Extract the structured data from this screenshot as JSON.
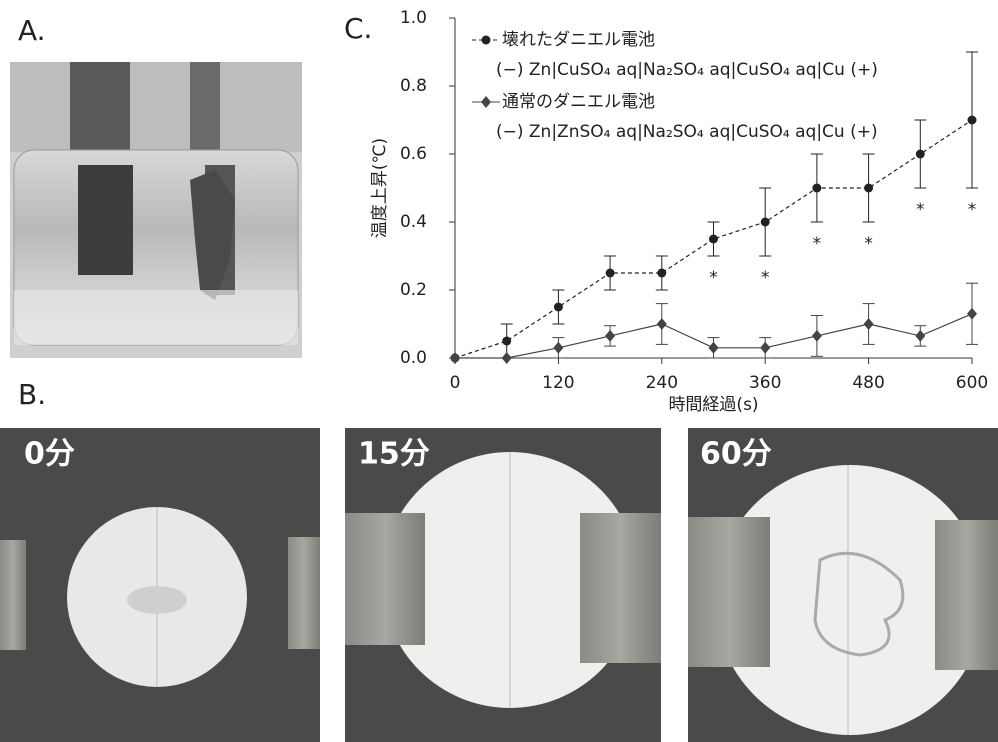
{
  "panel_labels": [
    "A.",
    "B.",
    "C."
  ],
  "photo_labels": [
    "0分",
    "15分",
    "60分"
  ],
  "chart_data": {
    "type": "line",
    "y_label": "温度上昇(℃)",
    "x_label": "時間経過(s)",
    "x": [
      0,
      60,
      120,
      180,
      240,
      300,
      360,
      420,
      480,
      540,
      600
    ],
    "xlim": [
      0,
      600
    ],
    "xticks": [
      0,
      120,
      240,
      360,
      480,
      600
    ],
    "ylim": [
      0,
      1
    ],
    "yticks": [
      {
        "value": 0,
        "label": "0.0"
      },
      {
        "value": 0.2,
        "label": "0.2"
      },
      {
        "value": 0.4,
        "label": "0.4"
      },
      {
        "value": 0.6,
        "label": "0.6"
      },
      {
        "value": 0.8,
        "label": "0.8"
      },
      {
        "value": 1,
        "label": "1.0"
      }
    ],
    "series": [
      {
        "name": "壊れたダニエル電池",
        "cell_notation": "(−) Zn|CuSO₄ aq|Na₂SO₄ aq|CuSO₄ aq|Cu (+)",
        "color": "#222222",
        "line_style": "dashed",
        "marker": "circle",
        "values": [
          0,
          0.05,
          0.15,
          0.25,
          0.25,
          0.35,
          0.4,
          0.5,
          0.5,
          0.6,
          0.7
        ],
        "errors": [
          0,
          0.05,
          0.05,
          0.05,
          0.05,
          0.05,
          0.1,
          0.1,
          0.1,
          0.1,
          0.2
        ]
      },
      {
        "name": "通常のダニエル電池",
        "cell_notation": "(−) Zn|ZnSO₄ aq|Na₂SO₄ aq|CuSO₄ aq|Cu (+)",
        "color": "#444444",
        "line_style": "solid",
        "marker": "diamond",
        "values": [
          0,
          0,
          0.03,
          0.065,
          0.1,
          0.03,
          0.03,
          0.065,
          0.1,
          0.065,
          0.13
        ],
        "errors": [
          0,
          0,
          0.03,
          0.03,
          0.06,
          0.03,
          0.03,
          0.06,
          0.06,
          0.03,
          0.09
        ]
      }
    ],
    "annotations": {
      "label": "*",
      "x": [
        300,
        360,
        420,
        480,
        540,
        600
      ]
    }
  }
}
